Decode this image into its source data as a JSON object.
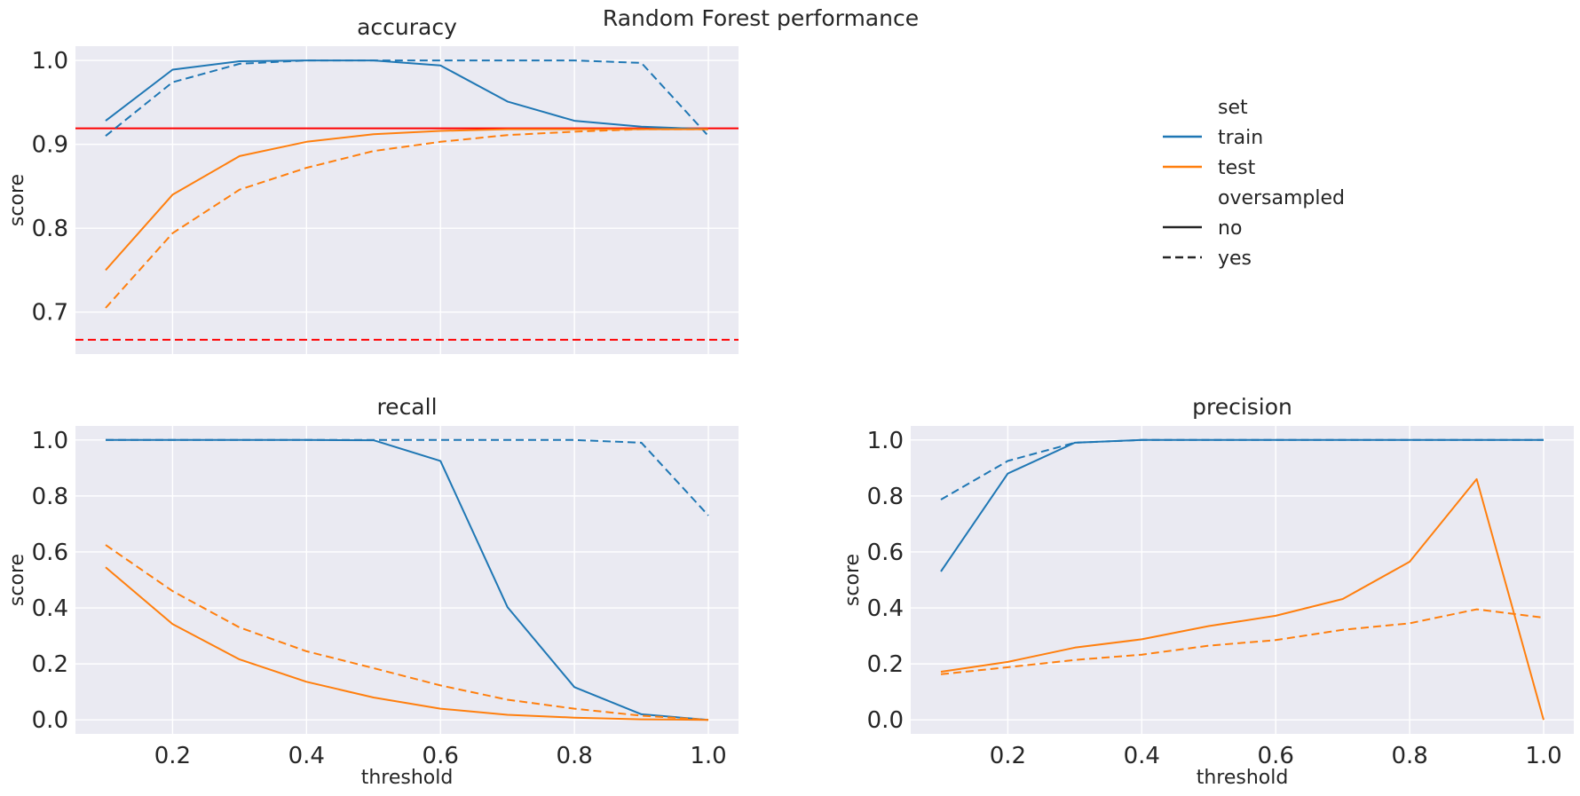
{
  "figure": {
    "suptitle": "Random Forest performance"
  },
  "colors": {
    "train": "#1f77b4",
    "test": "#ff7f0e",
    "baseline": "#ff0000",
    "panel_bg": "#eaeaf2",
    "grid": "#ffffff"
  },
  "legend": {
    "placement": "right-of-accuracy",
    "set_title": "set",
    "set_items": [
      {
        "label": "train",
        "color": "#1f77b4"
      },
      {
        "label": "test",
        "color": "#ff7f0e"
      }
    ],
    "style_title": "oversampled",
    "style_items": [
      {
        "label": "no",
        "dash": "solid"
      },
      {
        "label": "yes",
        "dash": "dashed"
      }
    ]
  },
  "chart_data": [
    {
      "type": "line",
      "title": "accuracy",
      "xlabel": "",
      "ylabel": "score",
      "xlim": [
        0.055,
        1.045
      ],
      "ylim": [
        0.65,
        1.017
      ],
      "xticks": [
        0.2,
        0.4,
        0.6,
        0.8,
        1.0
      ],
      "xtick_labels": [],
      "yticks": [
        0.7,
        0.8,
        0.9,
        1.0
      ],
      "ytick_labels": [
        "0.7",
        "0.8",
        "0.9",
        "1.0"
      ],
      "grid": true,
      "x": [
        0.1,
        0.2,
        0.3,
        0.4,
        0.5,
        0.6,
        0.7,
        0.8,
        0.9,
        1.0
      ],
      "series": [
        {
          "set": "train",
          "oversampled": "no",
          "color": "#1f77b4",
          "dash": "solid",
          "values": [
            0.928,
            0.989,
            0.999,
            1.0,
            1.0,
            0.994,
            0.951,
            0.928,
            0.921,
            0.918
          ]
        },
        {
          "set": "train",
          "oversampled": "yes",
          "color": "#1f77b4",
          "dash": "dashed",
          "values": [
            0.91,
            0.974,
            0.996,
            1.0,
            1.0,
            1.0,
            1.0,
            1.0,
            0.997,
            0.91
          ]
        },
        {
          "set": "test",
          "oversampled": "no",
          "color": "#ff7f0e",
          "dash": "solid",
          "values": [
            0.75,
            0.84,
            0.886,
            0.903,
            0.912,
            0.916,
            0.918,
            0.918,
            0.918,
            0.918
          ]
        },
        {
          "set": "test",
          "oversampled": "yes",
          "color": "#ff7f0e",
          "dash": "dashed",
          "values": [
            0.705,
            0.794,
            0.846,
            0.872,
            0.892,
            0.903,
            0.911,
            0.915,
            0.918,
            0.918
          ]
        }
      ],
      "reference_lines": [
        {
          "y": 0.919,
          "color": "#ff0000",
          "dash": "solid"
        },
        {
          "y": 0.667,
          "color": "#ff0000",
          "dash": "dashed"
        }
      ]
    },
    {
      "type": "line",
      "title": "recall",
      "xlabel": "threshold",
      "ylabel": "score",
      "xlim": [
        0.055,
        1.045
      ],
      "ylim": [
        -0.05,
        1.05
      ],
      "xticks": [
        0.2,
        0.4,
        0.6,
        0.8,
        1.0
      ],
      "xtick_labels": [
        "0.2",
        "0.4",
        "0.6",
        "0.8",
        "1.0"
      ],
      "yticks": [
        0.0,
        0.2,
        0.4,
        0.6,
        0.8,
        1.0
      ],
      "ytick_labels": [
        "0.0",
        "0.2",
        "0.4",
        "0.6",
        "0.8",
        "1.0"
      ],
      "grid": true,
      "x": [
        0.1,
        0.2,
        0.3,
        0.4,
        0.5,
        0.6,
        0.7,
        0.8,
        0.9,
        1.0
      ],
      "series": [
        {
          "set": "train",
          "oversampled": "no",
          "color": "#1f77b4",
          "dash": "solid",
          "values": [
            1.0,
            1.0,
            1.0,
            1.0,
            0.999,
            0.925,
            0.403,
            0.117,
            0.02,
            0.0
          ]
        },
        {
          "set": "train",
          "oversampled": "yes",
          "color": "#1f77b4",
          "dash": "dashed",
          "values": [
            1.0,
            1.0,
            1.0,
            1.0,
            1.0,
            1.0,
            1.0,
            1.0,
            0.99,
            0.73
          ]
        },
        {
          "set": "test",
          "oversampled": "no",
          "color": "#ff7f0e",
          "dash": "solid",
          "values": [
            0.545,
            0.342,
            0.216,
            0.136,
            0.08,
            0.04,
            0.018,
            0.008,
            0.002,
            0.0
          ]
        },
        {
          "set": "test",
          "oversampled": "yes",
          "color": "#ff7f0e",
          "dash": "dashed",
          "values": [
            0.625,
            0.46,
            0.33,
            0.245,
            0.185,
            0.123,
            0.072,
            0.04,
            0.015,
            0.0
          ]
        }
      ],
      "reference_lines": []
    },
    {
      "type": "line",
      "title": "precision",
      "xlabel": "threshold",
      "ylabel": "score",
      "xlim": [
        0.055,
        1.045
      ],
      "ylim": [
        -0.05,
        1.05
      ],
      "xticks": [
        0.2,
        0.4,
        0.6,
        0.8,
        1.0
      ],
      "xtick_labels": [
        "0.2",
        "0.4",
        "0.6",
        "0.8",
        "1.0"
      ],
      "yticks": [
        0.0,
        0.2,
        0.4,
        0.6,
        0.8,
        1.0
      ],
      "ytick_labels": [
        "0.0",
        "0.2",
        "0.4",
        "0.6",
        "0.8",
        "1.0"
      ],
      "grid": true,
      "x": [
        0.1,
        0.2,
        0.3,
        0.4,
        0.5,
        0.6,
        0.7,
        0.8,
        0.9,
        1.0
      ],
      "series": [
        {
          "set": "train",
          "oversampled": "no",
          "color": "#1f77b4",
          "dash": "solid",
          "values": [
            0.53,
            0.88,
            0.99,
            1.0,
            1.0,
            1.0,
            1.0,
            1.0,
            1.0,
            1.0
          ]
        },
        {
          "set": "train",
          "oversampled": "yes",
          "color": "#1f77b4",
          "dash": "dashed",
          "values": [
            0.787,
            0.925,
            0.99,
            1.0,
            1.0,
            1.0,
            1.0,
            1.0,
            1.0,
            1.0
          ]
        },
        {
          "set": "test",
          "oversampled": "no",
          "color": "#ff7f0e",
          "dash": "solid",
          "values": [
            0.172,
            0.207,
            0.258,
            0.288,
            0.335,
            0.372,
            0.432,
            0.565,
            0.86,
            0.0
          ]
        },
        {
          "set": "test",
          "oversampled": "yes",
          "color": "#ff7f0e",
          "dash": "dashed",
          "values": [
            0.163,
            0.188,
            0.214,
            0.233,
            0.265,
            0.285,
            0.322,
            0.345,
            0.395,
            0.365
          ]
        }
      ],
      "reference_lines": []
    }
  ]
}
